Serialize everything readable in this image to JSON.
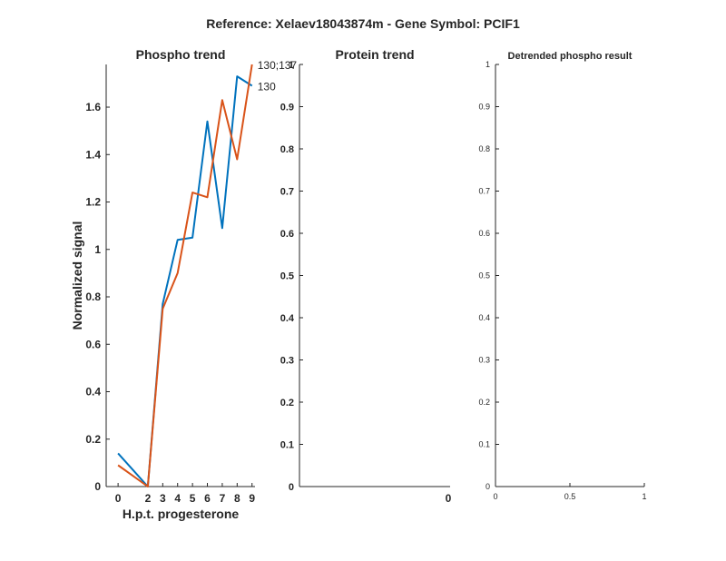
{
  "figure": {
    "title": "Reference:  Xelaev18043874m - Gene Symbol:  PCIF1"
  },
  "colors": {
    "series_blue": "#0072BD",
    "series_orange": "#D95319",
    "axis": "#262626"
  },
  "chart_data": [
    {
      "type": "line",
      "title": "Phospho trend",
      "xlabel": "H.p.t. progesterone",
      "ylabel": "Normalized signal",
      "xlim": [
        -0.8,
        9.2
      ],
      "ylim": [
        0,
        1.78
      ],
      "xticks": [
        0,
        2,
        3,
        4,
        5,
        6,
        7,
        8,
        9
      ],
      "yticks": [
        0,
        0.2,
        0.4,
        0.6,
        0.8,
        1,
        1.2,
        1.4,
        1.6
      ],
      "ytick_labels": [
        "0",
        "0.2",
        "0.4",
        "0.6",
        "0.8",
        "1",
        "1.2",
        "1.4",
        "1.6"
      ],
      "grid": false,
      "series": [
        {
          "name": "130",
          "color": "#0072BD",
          "x": [
            0,
            1,
            2,
            3,
            4,
            5,
            6,
            7,
            8,
            9
          ],
          "y": [
            0.14,
            0.07,
            0.0,
            0.77,
            1.04,
            1.05,
            1.54,
            1.09,
            1.73,
            1.69
          ]
        },
        {
          "name": "130;137",
          "color": "#D95319",
          "x": [
            0,
            1,
            2,
            3,
            4,
            5,
            6,
            7,
            8,
            9
          ],
          "y": [
            0.09,
            0.045,
            0.0,
            0.75,
            0.9,
            1.24,
            1.22,
            1.63,
            1.38,
            1.78
          ]
        }
      ]
    },
    {
      "type": "line",
      "title": "Protein trend",
      "xlabel": "",
      "ylabel": "",
      "ylim": [
        0,
        1
      ],
      "yticks": [
        0,
        0.1,
        0.2,
        0.3,
        0.4,
        0.5,
        0.6,
        0.7,
        0.8,
        0.9,
        1
      ],
      "ytick_labels": [
        "0",
        "0.1",
        "0.2",
        "0.3",
        "0.4",
        "0.5",
        "0.6",
        "0.7",
        "0.8",
        "0.9",
        "1"
      ],
      "xticks": [
        0
      ],
      "xtick_labels": [
        "0"
      ],
      "grid": false,
      "series": []
    },
    {
      "type": "line",
      "title": "Detrended phospho result",
      "xlabel": "",
      "ylabel": "",
      "xlim": [
        0,
        1
      ],
      "ylim": [
        0,
        1
      ],
      "yticks": [
        0,
        0.1,
        0.2,
        0.3,
        0.4,
        0.5,
        0.6,
        0.7,
        0.8,
        0.9,
        1
      ],
      "ytick_labels": [
        "0",
        "0.1",
        "0.2",
        "0.3",
        "0.4",
        "0.5",
        "0.6",
        "0.7",
        "0.8",
        "0.9",
        "1"
      ],
      "xticks": [
        0,
        0.5,
        1
      ],
      "xtick_labels": [
        "0",
        "0.5",
        "1"
      ],
      "grid": false,
      "series": []
    }
  ]
}
